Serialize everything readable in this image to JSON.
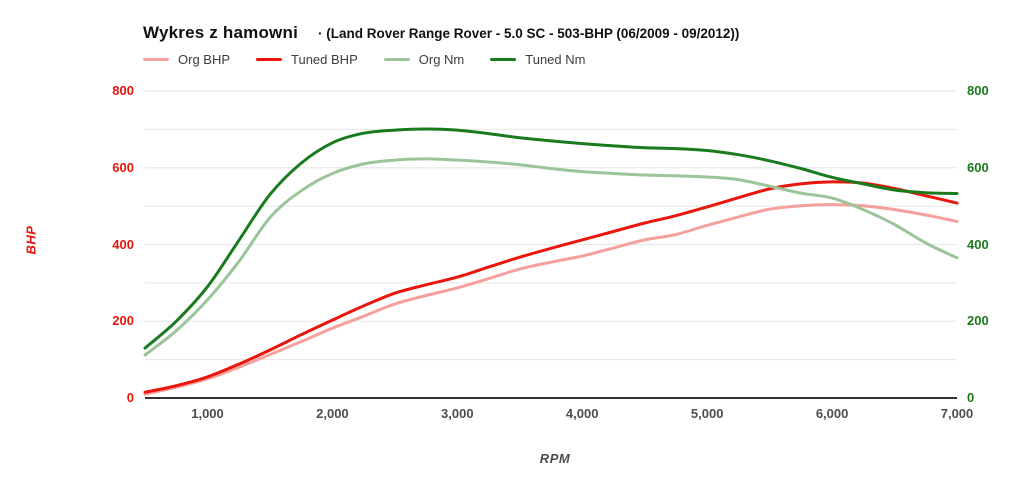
{
  "header": {
    "title": "Wykres z hamowni",
    "subtitle": "· (Land Rover Range Rover - 5.0 SC - 503-BHP (06/2009 - 09/2012))"
  },
  "chart_data": {
    "type": "line",
    "title": "Wykres z hamowni",
    "subtitle": "(Land Rover Range Rover - 5.0 SC - 503-BHP (06/2009 - 09/2012))",
    "xlabel": "RPM",
    "ylabel_left": "BHP",
    "xlim": [
      500,
      7000
    ],
    "ylim": [
      0,
      800
    ],
    "grid_step": 100,
    "grid": "horizontal-only",
    "legend_position": "top-left",
    "y_ticks": [
      0,
      200,
      400,
      600,
      800
    ],
    "x_ticks": [
      {
        "value": 1000,
        "label": "1,000"
      },
      {
        "value": 2000,
        "label": "2,000"
      },
      {
        "value": 3000,
        "label": "3,000"
      },
      {
        "value": 4000,
        "label": "4,000"
      },
      {
        "value": 5000,
        "label": "5,000"
      },
      {
        "value": 6000,
        "label": "6,000"
      },
      {
        "value": 7000,
        "label": "7,000"
      }
    ],
    "x": [
      500,
      750,
      1000,
      1250,
      1500,
      1750,
      2000,
      2250,
      2500,
      2750,
      3000,
      3250,
      3500,
      3750,
      4000,
      4250,
      4500,
      4750,
      5000,
      5250,
      5500,
      5750,
      6000,
      6250,
      6500,
      6750,
      7000
    ],
    "series": [
      {
        "name": "Org BHP",
        "color": "#f5a09c",
        "axis": "left",
        "values": [
          10,
          28,
          50,
          80,
          113,
          147,
          182,
          213,
          245,
          267,
          287,
          311,
          336,
          354,
          370,
          391,
          412,
          426,
          450,
          472,
          492,
          501,
          504,
          501,
          491,
          477,
          460
        ]
      },
      {
        "name": "Tuned BHP",
        "color": "#ea150b",
        "axis": "left",
        "values": [
          15,
          32,
          55,
          88,
          125,
          165,
          203,
          240,
          273,
          295,
          315,
          341,
          367,
          390,
          412,
          434,
          456,
          475,
          498,
          522,
          545,
          558,
          563,
          560,
          546,
          527,
          508
        ]
      },
      {
        "name": "Org Nm",
        "color": "#9cc49a",
        "axis": "right",
        "values": [
          112,
          175,
          256,
          355,
          470,
          540,
          585,
          610,
          620,
          623,
          620,
          615,
          608,
          598,
          590,
          585,
          581,
          579,
          576,
          569,
          552,
          534,
          521,
          491,
          452,
          404,
          365
        ]
      },
      {
        "name": "Tuned Nm",
        "color": "#1a7a1e",
        "axis": "right",
        "values": [
          130,
          200,
          290,
          410,
          530,
          612,
          665,
          690,
          698,
          701,
          698,
          689,
          678,
          670,
          663,
          657,
          652,
          650,
          645,
          634,
          618,
          598,
          575,
          558,
          542,
          535,
          533
        ]
      }
    ],
    "colors": {
      "gridline": "#e6e6e6",
      "baseline": "#333333",
      "left_axis": "#e8150b",
      "right_axis": "#1a7a1a",
      "x_axis": "#4d4d4d"
    }
  }
}
